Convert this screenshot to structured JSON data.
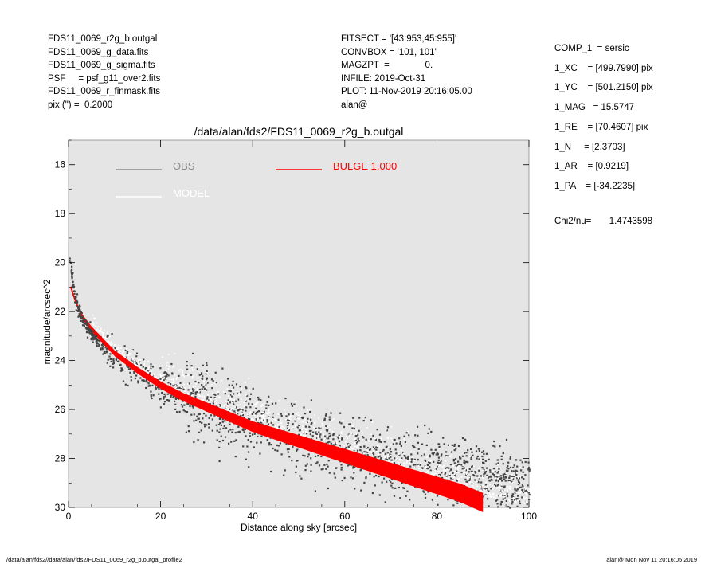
{
  "header_left": [
    "FDS11_0069_r2g_b.outgal",
    "FDS11_0069_g_data.fits",
    "FDS11_0069_g_sigma.fits",
    "PSF     = psf_g11_over2.fits",
    "FDS11_0069_r_finmask.fits",
    "pix (\") =  0.2000"
  ],
  "header_mid": [
    "FITSECT = '[43:953,45:955]'",
    "CONVBOX = '101, 101'",
    "MAGZPT  =              0.",
    "INFILE: 2019-Oct-31",
    "PLOT: 11-Nov-2019 20:16:05.00",
    "alan@"
  ],
  "header_right": [
    "COMP_1  = sersic",
    "1_XC    = [499.7990] pix",
    "1_YC    = [501.2150] pix",
    "1_MAG   = 15.5747",
    "1_RE    = [70.4607] pix",
    "1_N     = [2.3703]",
    "1_AR    = [0.9219]",
    "1_PA    = [-34.2235]"
  ],
  "chi2": "Chi2/nu=       1.4743598",
  "footer": {
    "left": "/data/alan/fds2//data/alan/fds2/FDS11_0069_r2g_b.outgal_profile2",
    "right": "alan@  Mon Nov 11 20:16:05 2019"
  },
  "colors": {
    "background": "#e5e5e5",
    "obs": "#444444",
    "obs_legend": "#8c8c8c",
    "model": "#ffffff",
    "bulge": "#ff0000"
  },
  "chart_data": {
    "type": "scatter",
    "title": "/data/alan/fds2/FDS11_0069_r2g_b.outgal",
    "xlabel": "Distance along sky [arcsec]",
    "ylabel": "magnitude/arcsec^2",
    "xlim": [
      0,
      100
    ],
    "ylim": [
      30,
      15
    ],
    "inverted_y": true,
    "xticks": [
      0,
      20,
      40,
      60,
      80,
      100
    ],
    "yticks": [
      16,
      18,
      20,
      22,
      24,
      26,
      28,
      30
    ],
    "grid": false,
    "legend": [
      {
        "name": "OBS",
        "color": "#8c8c8c"
      },
      {
        "name": "MODEL",
        "color": "#ffffff"
      },
      {
        "name": "BULGE  1.000",
        "color": "#ff0000"
      }
    ],
    "series": [
      {
        "name": "OBS",
        "x": [
          0.2,
          0.5,
          1,
          2,
          3,
          4,
          5,
          6,
          8,
          10,
          12,
          15,
          20,
          25,
          30,
          35,
          40,
          45,
          50,
          55,
          60,
          65,
          70,
          75,
          80,
          85,
          90,
          95,
          100
        ],
        "y": [
          19.8,
          20.4,
          21.1,
          21.9,
          22.3,
          22.6,
          22.9,
          23.1,
          23.5,
          23.8,
          24.1,
          24.4,
          24.9,
          25.4,
          25.8,
          26.2,
          26.5,
          26.8,
          27.1,
          27.4,
          27.6,
          27.9,
          28.1,
          28.3,
          28.5,
          28.7,
          28.8,
          29.0,
          29.1
        ]
      },
      {
        "name": "MODEL",
        "x": [
          0.5,
          1,
          2,
          3,
          5,
          10,
          15,
          20,
          25,
          30,
          35,
          40,
          45,
          50,
          55,
          60,
          65,
          70,
          75,
          80,
          85,
          90,
          95,
          100
        ],
        "y": [
          20.9,
          21.3,
          21.8,
          22.2,
          22.7,
          23.7,
          24.4,
          25.0,
          25.5,
          25.9,
          26.3,
          26.7,
          27.0,
          27.3,
          27.6,
          27.9,
          28.2,
          28.5,
          28.8,
          29.0,
          29.3,
          29.5,
          29.7,
          29.9
        ]
      },
      {
        "name": "BULGE  1.000",
        "x": [
          0.5,
          1,
          2,
          3,
          5,
          10,
          15,
          20,
          25,
          30,
          35,
          40,
          45,
          50,
          55,
          60,
          65,
          70,
          75,
          80,
          85,
          90
        ],
        "y": [
          21.0,
          21.3,
          21.8,
          22.2,
          22.7,
          23.7,
          24.4,
          25.0,
          25.5,
          25.9,
          26.3,
          26.7,
          27.0,
          27.3,
          27.6,
          27.9,
          28.2,
          28.5,
          28.8,
          29.1,
          29.4,
          29.8
        ]
      }
    ]
  }
}
